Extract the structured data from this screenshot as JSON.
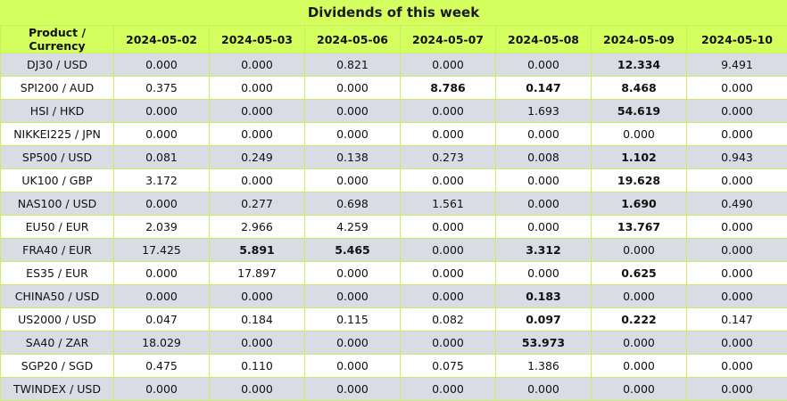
{
  "title": "Dividends of this week",
  "columns": [
    "Product / Currency",
    "2024-05-02",
    "2024-05-03",
    "2024-05-06",
    "2024-05-07",
    "2024-05-08",
    "2024-05-09",
    "2024-05-10"
  ],
  "rows": [
    {
      "product": "DJ30 / USD",
      "values": [
        "0.000",
        "0.000",
        "0.821",
        "0.000",
        "0.000",
        "12.334",
        "9.491"
      ],
      "bold": [
        false,
        false,
        false,
        false,
        false,
        true,
        false
      ]
    },
    {
      "product": "SPI200 / AUD",
      "values": [
        "0.375",
        "0.000",
        "0.000",
        "8.786",
        "0.147",
        "8.468",
        "0.000"
      ],
      "bold": [
        false,
        false,
        false,
        true,
        true,
        true,
        false
      ]
    },
    {
      "product": "HSI / HKD",
      "values": [
        "0.000",
        "0.000",
        "0.000",
        "0.000",
        "1.693",
        "54.619",
        "0.000"
      ],
      "bold": [
        false,
        false,
        false,
        false,
        false,
        true,
        false
      ]
    },
    {
      "product": "NIKKEI225 / JPN",
      "values": [
        "0.000",
        "0.000",
        "0.000",
        "0.000",
        "0.000",
        "0.000",
        "0.000"
      ],
      "bold": [
        false,
        false,
        false,
        false,
        false,
        false,
        false
      ]
    },
    {
      "product": "SP500 / USD",
      "values": [
        "0.081",
        "0.249",
        "0.138",
        "0.273",
        "0.008",
        "1.102",
        "0.943"
      ],
      "bold": [
        false,
        false,
        false,
        false,
        false,
        true,
        false
      ]
    },
    {
      "product": "UK100 / GBP",
      "values": [
        "3.172",
        "0.000",
        "0.000",
        "0.000",
        "0.000",
        "19.628",
        "0.000"
      ],
      "bold": [
        false,
        false,
        false,
        false,
        false,
        true,
        false
      ]
    },
    {
      "product": "NAS100 / USD",
      "values": [
        "0.000",
        "0.277",
        "0.698",
        "1.561",
        "0.000",
        "1.690",
        "0.490"
      ],
      "bold": [
        false,
        false,
        false,
        false,
        false,
        true,
        false
      ]
    },
    {
      "product": "EU50 / EUR",
      "values": [
        "2.039",
        "2.966",
        "4.259",
        "0.000",
        "0.000",
        "13.767",
        "0.000"
      ],
      "bold": [
        false,
        false,
        false,
        false,
        false,
        true,
        false
      ]
    },
    {
      "product": "FRA40 / EUR",
      "values": [
        "17.425",
        "5.891",
        "5.465",
        "0.000",
        "3.312",
        "0.000",
        "0.000"
      ],
      "bold": [
        false,
        true,
        true,
        false,
        true,
        false,
        false
      ]
    },
    {
      "product": "ES35 / EUR",
      "values": [
        "0.000",
        "17.897",
        "0.000",
        "0.000",
        "0.000",
        "0.625",
        "0.000"
      ],
      "bold": [
        false,
        false,
        false,
        false,
        false,
        true,
        false
      ]
    },
    {
      "product": "CHINA50 / USD",
      "values": [
        "0.000",
        "0.000",
        "0.000",
        "0.000",
        "0.183",
        "0.000",
        "0.000"
      ],
      "bold": [
        false,
        false,
        false,
        false,
        true,
        false,
        false
      ]
    },
    {
      "product": "US2000 / USD",
      "values": [
        "0.047",
        "0.184",
        "0.115",
        "0.082",
        "0.097",
        "0.222",
        "0.147"
      ],
      "bold": [
        false,
        false,
        false,
        false,
        true,
        true,
        false
      ]
    },
    {
      "product": "SA40 / ZAR",
      "values": [
        "18.029",
        "0.000",
        "0.000",
        "0.000",
        "53.973",
        "0.000",
        "0.000"
      ],
      "bold": [
        false,
        false,
        false,
        false,
        true,
        false,
        false
      ]
    },
    {
      "product": "SGP20 / SGD",
      "values": [
        "0.475",
        "0.110",
        "0.000",
        "0.075",
        "1.386",
        "0.000",
        "0.000"
      ],
      "bold": [
        false,
        false,
        false,
        false,
        false,
        false,
        false
      ]
    },
    {
      "product": "TWINDEX / USD",
      "values": [
        "0.000",
        "0.000",
        "0.000",
        "0.000",
        "0.000",
        "0.000",
        "0.000"
      ],
      "bold": [
        false,
        false,
        false,
        false,
        false,
        false,
        false
      ]
    }
  ]
}
